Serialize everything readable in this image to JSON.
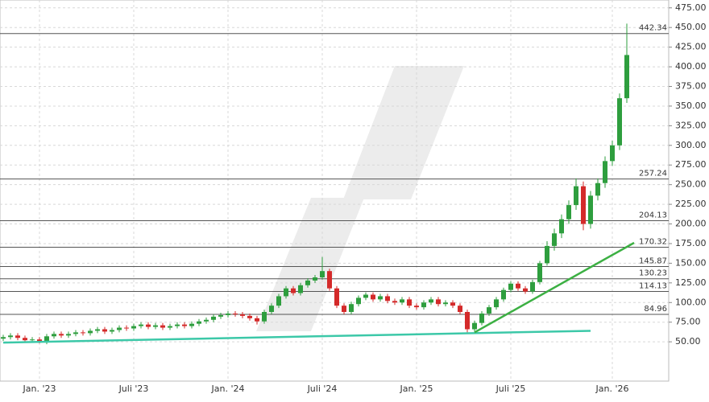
{
  "chart_data": {
    "type": "candlestick",
    "up_color": "#2e9e3e",
    "down_color": "#d42a2a",
    "level_color": "#555555",
    "grid": true,
    "ylim": [
      0,
      485
    ],
    "yticks": [
      {
        "value": 50,
        "label": "50.00"
      },
      {
        "value": 75,
        "label": "75.00"
      },
      {
        "value": 100,
        "label": "100.00"
      },
      {
        "value": 125,
        "label": "125.00"
      },
      {
        "value": 150,
        "label": "150.00"
      },
      {
        "value": 175,
        "label": "175.00"
      },
      {
        "value": 200,
        "label": "200.00"
      },
      {
        "value": 225,
        "label": "225.00"
      },
      {
        "value": 250,
        "label": "250.00"
      },
      {
        "value": 275,
        "label": "275.00"
      },
      {
        "value": 300,
        "label": "300.00"
      },
      {
        "value": 325,
        "label": "325.00"
      },
      {
        "value": 350,
        "label": "350.00"
      },
      {
        "value": 375,
        "label": "375.00"
      },
      {
        "value": 400,
        "label": "400.00"
      },
      {
        "value": 425,
        "label": "425.00"
      },
      {
        "value": 450,
        "label": "450.00"
      },
      {
        "value": 475,
        "label": "475.00"
      }
    ],
    "categories": [
      null,
      null,
      null,
      null,
      null,
      "Jan. '23",
      null,
      null,
      null,
      null,
      null,
      null,
      null,
      null,
      null,
      null,
      null,
      null,
      "Juli '23",
      null,
      null,
      null,
      null,
      null,
      null,
      null,
      null,
      null,
      null,
      null,
      null,
      "Jan. '24",
      null,
      null,
      null,
      null,
      null,
      null,
      null,
      null,
      null,
      null,
      null,
      null,
      "Juli '24",
      null,
      null,
      null,
      null,
      null,
      null,
      null,
      null,
      null,
      null,
      null,
      null,
      "Jan. '25",
      null,
      null,
      null,
      null,
      null,
      null,
      null,
      null,
      null,
      null,
      null,
      null,
      "Juli '25",
      null,
      null,
      null,
      null,
      null,
      null,
      null,
      null,
      null,
      null,
      null,
      null,
      null,
      "Jan. '26",
      null,
      null
    ],
    "open": [
      54,
      56,
      58,
      55,
      52,
      53,
      50,
      57,
      60,
      58,
      60,
      62,
      61,
      64,
      66,
      63,
      65,
      68,
      67,
      70,
      72,
      69,
      71,
      68,
      70,
      72,
      70,
      73,
      76,
      78,
      82,
      84,
      86,
      85,
      83,
      80,
      76,
      88,
      96,
      108,
      118,
      112,
      122,
      128,
      132,
      140,
      118,
      96,
      88,
      98,
      106,
      110,
      104,
      108,
      102,
      100,
      104,
      96,
      94,
      100,
      104,
      98,
      100,
      96,
      88,
      66,
      74,
      86,
      94,
      104,
      116,
      124,
      118,
      114,
      126,
      150,
      172,
      188,
      206,
      224,
      248,
      200,
      236,
      252,
      280,
      300,
      360
    ],
    "high": [
      59,
      61,
      61,
      58,
      56,
      56,
      60,
      63,
      63,
      63,
      65,
      65,
      67,
      69,
      69,
      68,
      71,
      71,
      73,
      75,
      75,
      74,
      74,
      73,
      75,
      75,
      76,
      79,
      81,
      85,
      87,
      89,
      89,
      88,
      86,
      83,
      91,
      99,
      111,
      121,
      121,
      125,
      131,
      135,
      158,
      143,
      121,
      99,
      101,
      109,
      113,
      113,
      111,
      111,
      105,
      107,
      107,
      99,
      103,
      107,
      107,
      103,
      103,
      99,
      91,
      77,
      89,
      97,
      107,
      119,
      127,
      127,
      121,
      129,
      153,
      178,
      194,
      212,
      230,
      258,
      254,
      242,
      258,
      286,
      306,
      366,
      455
    ],
    "low": [
      51,
      53,
      52,
      49,
      49,
      48,
      47,
      54,
      55,
      55,
      57,
      58,
      58,
      61,
      60,
      60,
      62,
      64,
      64,
      67,
      66,
      66,
      65,
      65,
      67,
      67,
      67,
      70,
      73,
      75,
      79,
      81,
      82,
      80,
      77,
      72,
      73,
      85,
      93,
      105,
      109,
      109,
      119,
      125,
      129,
      115,
      93,
      85,
      85,
      95,
      103,
      101,
      101,
      99,
      97,
      97,
      93,
      91,
      91,
      97,
      95,
      95,
      93,
      85,
      62,
      63,
      71,
      83,
      91,
      101,
      113,
      115,
      111,
      111,
      123,
      147,
      166,
      182,
      200,
      218,
      192,
      194,
      230,
      246,
      274,
      294,
      354
    ],
    "close": [
      56,
      58,
      55,
      52,
      53,
      50,
      57,
      60,
      58,
      60,
      62,
      61,
      64,
      66,
      63,
      65,
      68,
      67,
      70,
      72,
      69,
      71,
      68,
      70,
      72,
      70,
      73,
      76,
      78,
      82,
      84,
      86,
      85,
      83,
      80,
      76,
      88,
      96,
      108,
      118,
      112,
      122,
      128,
      132,
      140,
      118,
      96,
      88,
      98,
      106,
      110,
      104,
      108,
      102,
      100,
      104,
      96,
      94,
      100,
      104,
      98,
      100,
      96,
      88,
      66,
      74,
      86,
      94,
      104,
      116,
      124,
      118,
      114,
      126,
      150,
      172,
      188,
      206,
      224,
      248,
      200,
      236,
      252,
      280,
      300,
      360,
      415
    ],
    "levels": [
      442.34,
      257.24,
      204.13,
      170.32,
      145.87,
      130.23,
      114.13,
      84.96
    ],
    "trendlines": [
      {
        "color": "#3cc8a8",
        "x": [
          0,
          81
        ],
        "y": [
          49,
          64
        ]
      },
      {
        "color": "#3cb043",
        "x": [
          65,
          87
        ],
        "y": [
          62,
          176
        ]
      }
    ]
  }
}
